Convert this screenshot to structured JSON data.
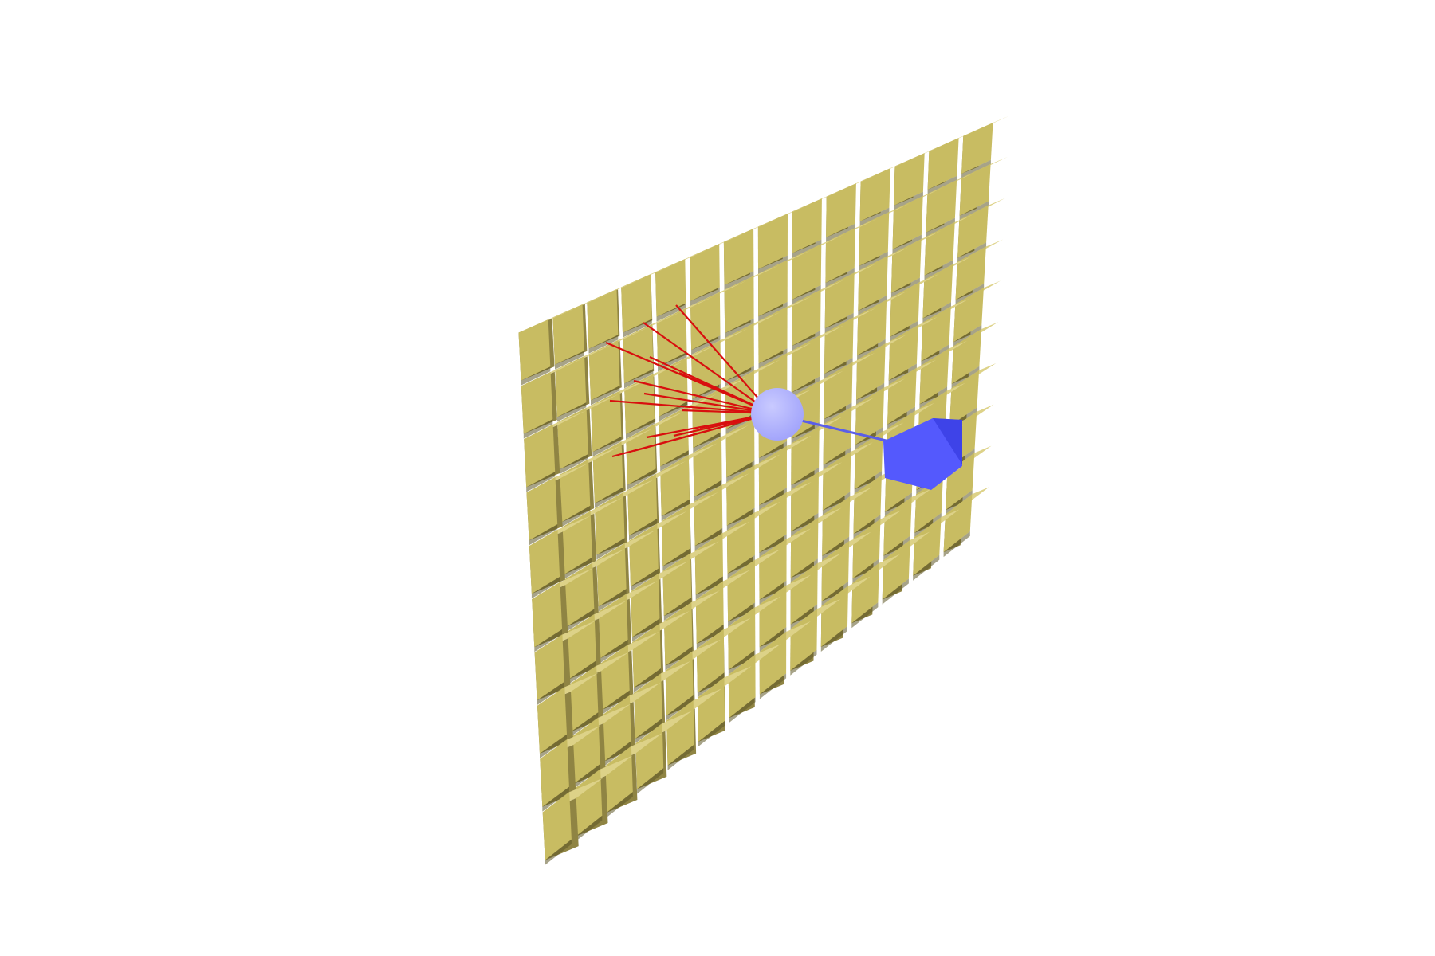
{
  "scene": {
    "background": "#ffffff",
    "grid": {
      "rows": 10,
      "cols": 14
    },
    "block_colors": {
      "front": "#c8bc62",
      "top": "#ddd288",
      "side": "#8f8443",
      "shadow": "#5f5726"
    },
    "sphere": {
      "fill": "#a3a5fb",
      "highlight": "#c9caff"
    },
    "target_cube": {
      "front": "#5459fd",
      "top": "#6a6fff",
      "side": "#3e43e8"
    },
    "sphere_to_cube_link": {
      "color": "#5a5ee8"
    },
    "rays": {
      "color": "#d80f0f",
      "count": 14
    }
  }
}
